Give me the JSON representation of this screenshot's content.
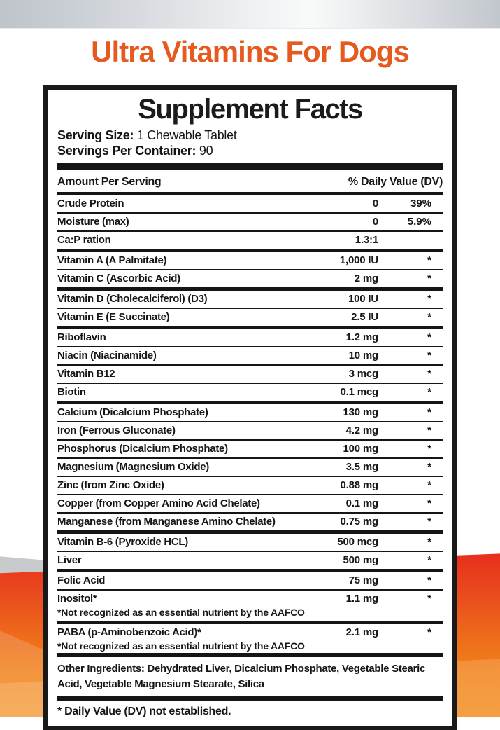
{
  "page": {
    "brand_title": "Ultra Vitamins For Dogs"
  },
  "label": {
    "title": "Supplement Facts",
    "serving_size_label": "Serving Size:",
    "serving_size_value": "1 Chewable Tablet",
    "servings_per_container_label": "Servings Per Container:",
    "servings_per_container_value": "90",
    "columns": {
      "amount_header": "Amount  Per Serving",
      "dv_header": "% Daily Value (DV)"
    },
    "rows": [
      {
        "name": "Crude Protein",
        "amount": "0",
        "dv": "39%"
      },
      {
        "name": "Moisture (max)",
        "amount": "0",
        "dv": "5.9%"
      },
      {
        "name": "Ca:P ration",
        "amount": "1.3:1",
        "dv": ""
      },
      {
        "name": "Vitamin A (A Palmitate)",
        "amount": "1,000 IU",
        "dv": "*"
      },
      {
        "name": "Vitamin C (Ascorbic Acid)",
        "amount": "2 mg",
        "dv": "*"
      },
      {
        "name": "Vitamin D (Cholecalciferol) (D3)",
        "amount": "100 IU",
        "dv": "*"
      },
      {
        "name": "Vitamin E (E Succinate)",
        "amount": "2.5 IU",
        "dv": "*"
      },
      {
        "name": "Riboflavin",
        "amount": "1.2 mg",
        "dv": "*"
      },
      {
        "name": "Niacin (Niacinamide)",
        "amount": "10 mg",
        "dv": "*"
      },
      {
        "name": "Vitamin B12",
        "amount": "3 mcg",
        "dv": "*"
      },
      {
        "name": "Biotin",
        "amount": "0.1 mcg",
        "dv": "*"
      },
      {
        "name": "Calcium (Dicalcium Phosphate)",
        "amount": "130 mg",
        "dv": "*"
      },
      {
        "name": "Iron (Ferrous Gluconate)",
        "amount": "4.2 mg",
        "dv": "*"
      },
      {
        "name": "Phosphorus (Dicalcium Phosphate)",
        "amount": "100 mg",
        "dv": "*"
      },
      {
        "name": "Magnesium (Magnesium Oxide)",
        "amount": "3.5 mg",
        "dv": "*"
      },
      {
        "name": "Zinc (from Zinc Oxide)",
        "amount": "0.88 mg",
        "dv": "*"
      },
      {
        "name": "Copper (from Copper Amino Acid Chelate)",
        "amount": "0.1 mg",
        "dv": "*"
      },
      {
        "name": "Manganese (from Manganese Amino Chelate)",
        "amount": "0.75 mg",
        "dv": "*"
      },
      {
        "name": "Vitamin B-6 (Pyroxide HCL)",
        "amount": "500 mcg",
        "dv": "*"
      },
      {
        "name": "Liver",
        "amount": "500 mg",
        "dv": "*"
      },
      {
        "name": "Folic Acid",
        "amount": "75 mg",
        "dv": "*"
      },
      {
        "name": "Inositol*",
        "amount": "1.1 mg",
        "dv": "*",
        "footnote": "*Not recognized as an essential nutrient by the AAFCO"
      },
      {
        "name": "PABA (p-Aminobenzoic Acid)*",
        "amount": "2.1 mg",
        "dv": "*",
        "footnote": "*Not recognized as an essential nutrient by the AAFCO"
      }
    ],
    "other_ingredients": "Other Ingredients: Dehydrated Liver, Dicalcium Phosphate, Vegetable Stearic Acid, Vegetable Magnesium Stearate, Silica",
    "footer_note": "* Daily Value (DV) not established."
  },
  "colors": {
    "brand_orange": "#e55a1e",
    "wave_red": "#e8251c",
    "wave_orange": "#f1811a",
    "topbar_gray": "#c2c7cd",
    "label_border": "#191919"
  }
}
